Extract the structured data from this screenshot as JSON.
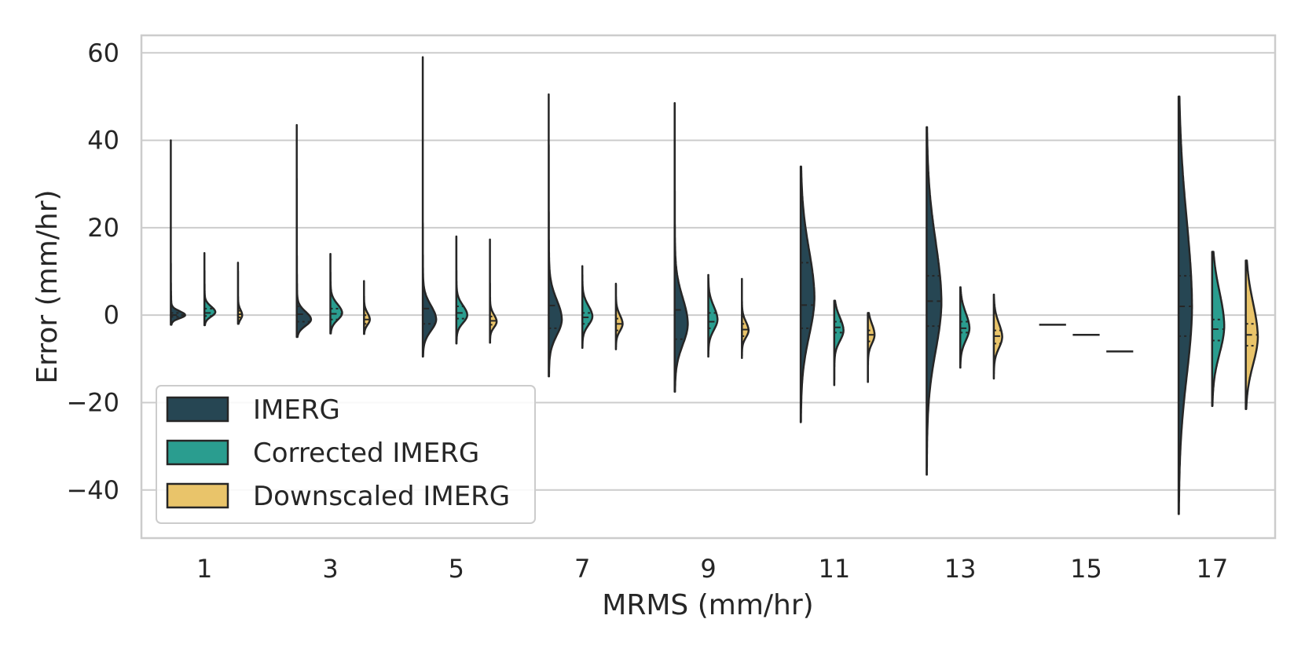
{
  "chart_data": {
    "type": "violin",
    "title": "",
    "xlabel": "MRMS (mm/hr)",
    "ylabel": "Error (mm/hr)",
    "ylim": [
      -51,
      64
    ],
    "yticks": [
      60,
      40,
      20,
      0,
      -20,
      -40
    ],
    "ytick_labels": [
      "60",
      "40",
      "20",
      "0",
      "−20",
      "−40"
    ],
    "grid": true,
    "legend_position": "lower-left",
    "categories": [
      "1",
      "3",
      "5",
      "7",
      "9",
      "11",
      "13",
      "15",
      "17"
    ],
    "series": [
      {
        "name": "IMERG",
        "color": "#264653",
        "violins": [
          {
            "min": -2.2,
            "max": 40,
            "q1": -0.4,
            "median": 0.0,
            "q3": 0.5,
            "mode": 0.0,
            "spread": 0.9,
            "tail": 3.5,
            "scale": 0.85
          },
          {
            "min": -5,
            "max": 43.5,
            "q1": -1.5,
            "median": 0.2,
            "q3": 2.0,
            "mode": -1.0,
            "spread": 1.8,
            "tail": 6,
            "scale": 0.85
          },
          {
            "min": -9.5,
            "max": 59,
            "q1": -2.0,
            "median": 1.5,
            "q3": 7.0,
            "mode": -1.0,
            "spread": 3.2,
            "tail": 8,
            "scale": 0.8
          },
          {
            "min": -14,
            "max": 50.5,
            "q1": -3.0,
            "median": 2.2,
            "q3": 12.0,
            "mode": -1.0,
            "spread": 4.5,
            "tail": 12,
            "scale": 0.78
          },
          {
            "min": -17.5,
            "max": 48.5,
            "q1": -5.5,
            "median": 1.2,
            "q3": 10.0,
            "mode": -2.0,
            "spread": 6.0,
            "tail": 13,
            "scale": 0.78
          },
          {
            "min": -24.5,
            "max": 34,
            "q1": -3.0,
            "median": 2.3,
            "q3": 12.0,
            "mode": 4.0,
            "spread": 11,
            "tail": 20,
            "scale": 0.82
          },
          {
            "min": -36.5,
            "max": 43,
            "q1": -2.5,
            "median": 3.2,
            "q3": 9.0,
            "mode": 3.0,
            "spread": 14,
            "tail": 25,
            "scale": 0.88
          },
          {
            "min": -2.2,
            "max": -2.2,
            "q1": -2.2,
            "median": -2.2,
            "q3": -2.2,
            "mode": -2.2,
            "spread": 1,
            "tail": 1,
            "scale": 0.8
          },
          {
            "min": -45.5,
            "max": 50,
            "q1": -4.8,
            "median": 2.0,
            "q3": 9.0,
            "mode": 2.0,
            "spread": 20,
            "tail": 30,
            "scale": 0.8
          }
        ]
      },
      {
        "name": "Corrected IMERG",
        "color": "#2a9d8f",
        "violins": [
          {
            "min": -2.3,
            "max": 14.2,
            "q1": -0.2,
            "median": 0.5,
            "q3": 1.5,
            "mode": 0.7,
            "spread": 1.3,
            "tail": 4,
            "scale": 0.65
          },
          {
            "min": -4.2,
            "max": 14,
            "q1": -1.0,
            "median": 0.3,
            "q3": 1.5,
            "mode": 0.5,
            "spread": 2.0,
            "tail": 5,
            "scale": 0.7
          },
          {
            "min": -6.5,
            "max": 18,
            "q1": -0.8,
            "median": 0.5,
            "q3": 2.0,
            "mode": 0.0,
            "spread": 2.2,
            "tail": 5,
            "scale": 0.65
          },
          {
            "min": -7.5,
            "max": 11.2,
            "q1": -2.0,
            "median": -0.5,
            "q3": 0.5,
            "mode": -0.3,
            "spread": 2.5,
            "tail": 4,
            "scale": 0.6
          },
          {
            "min": -9.5,
            "max": 9.2,
            "q1": -3.0,
            "median": -1.5,
            "q3": 0.5,
            "mode": -1.0,
            "spread": 3.0,
            "tail": 4,
            "scale": 0.55
          },
          {
            "min": -16,
            "max": 3.3,
            "q1": -4.0,
            "median": -2.8,
            "q3": -1.5,
            "mode": -3.5,
            "spread": 3.0,
            "tail": 6,
            "scale": 0.55
          },
          {
            "min": -12,
            "max": 6.4,
            "q1": -4.0,
            "median": -3.0,
            "q3": -1.5,
            "mode": -3.0,
            "spread": 3.5,
            "tail": 5,
            "scale": 0.55
          },
          {
            "min": -4.5,
            "max": -4.5,
            "q1": -4.5,
            "median": -4.5,
            "q3": -4.5,
            "mode": -4.5,
            "spread": 1,
            "tail": 1,
            "scale": 0.8
          },
          {
            "min": -20.8,
            "max": 14.5,
            "q1": -5.8,
            "median": -3.2,
            "q3": -1.0,
            "mode": -2.5,
            "spread": 8,
            "tail": 10,
            "scale": 0.72
          }
        ]
      },
      {
        "name": "Downscaled IMERG",
        "color": "#e9c46a",
        "violins": [
          {
            "min": -2.0,
            "max": 12,
            "q1": -0.5,
            "median": 0.2,
            "q3": 1.0,
            "mode": 0.0,
            "spread": 1.2,
            "tail": 4,
            "scale": 0.25
          },
          {
            "min": -4.3,
            "max": 7.8,
            "q1": -2.0,
            "median": -1.0,
            "q3": 0.0,
            "mode": -1.0,
            "spread": 1.5,
            "tail": 3,
            "scale": 0.35
          },
          {
            "min": -6.3,
            "max": 17.3,
            "q1": -2.2,
            "median": -1.3,
            "q3": -0.3,
            "mode": -1.5,
            "spread": 1.6,
            "tail": 4,
            "scale": 0.4
          },
          {
            "min": -7.8,
            "max": 7.2,
            "q1": -3.5,
            "median": -2.0,
            "q3": -0.8,
            "mode": -2.0,
            "spread": 2.0,
            "tail": 3,
            "scale": 0.4
          },
          {
            "min": -9.8,
            "max": 8.3,
            "q1": -4.8,
            "median": -3.3,
            "q3": -2.0,
            "mode": -3.5,
            "spread": 2.0,
            "tail": 3,
            "scale": 0.4
          },
          {
            "min": -15.3,
            "max": 0.5,
            "q1": -6.0,
            "median": -4.5,
            "q3": -3.5,
            "mode": -4.5,
            "spread": 2.5,
            "tail": 5,
            "scale": 0.4
          },
          {
            "min": -14.5,
            "max": 4.7,
            "q1": -6.5,
            "median": -4.8,
            "q3": -3.5,
            "mode": -5.0,
            "spread": 3.2,
            "tail": 4,
            "scale": 0.5
          },
          {
            "min": -8.3,
            "max": -8.3,
            "q1": -8.3,
            "median": -8.3,
            "q3": -8.3,
            "mode": -8.3,
            "spread": 1,
            "tail": 1,
            "scale": 0.8
          },
          {
            "min": -21.5,
            "max": 12.5,
            "q1": -7.0,
            "median": -4.5,
            "q3": -2.0,
            "mode": -5.0,
            "spread": 8,
            "tail": 8,
            "scale": 0.72
          }
        ]
      }
    ]
  }
}
